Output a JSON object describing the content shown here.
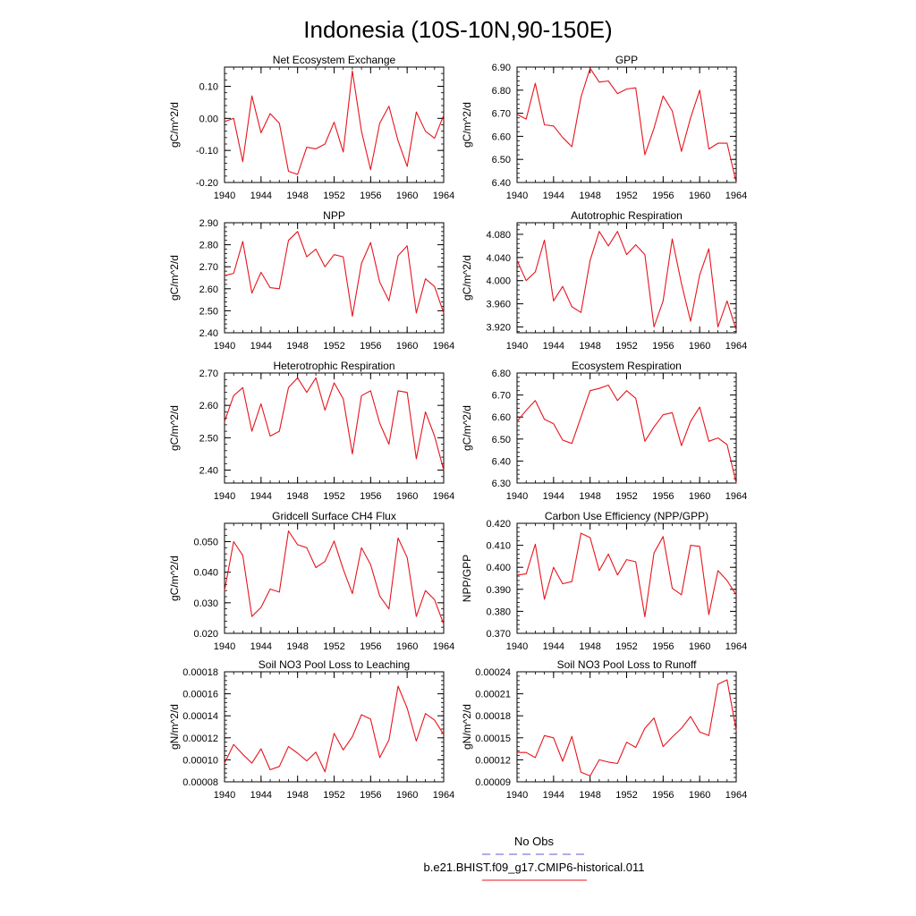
{
  "title": "Indonesia (10S-10N,90-150E)",
  "colors": {
    "model_line": "#e8141c",
    "obs_line": "#5b5bd6",
    "axis": "#000000"
  },
  "legend": {
    "placement": "bottom-center",
    "entries": [
      {
        "label": "No Obs",
        "style": "dashed",
        "color": "#5b5bd6"
      },
      {
        "label": "b.e21.BHIST.f09_g17.CMIP6-historical.011",
        "style": "solid",
        "color": "#e8141c"
      }
    ]
  },
  "chart_data": [
    {
      "type": "line",
      "title": "Net Ecosystem Exchange",
      "ylabel": "gC/m^2/d",
      "xlim": [
        1940,
        1964
      ],
      "ylim": [
        -0.2,
        0.16
      ],
      "xticks": [
        "1940",
        "1944",
        "1948",
        "1952",
        "1956",
        "1960",
        "1964"
      ],
      "yticks": [
        "-0.20",
        "-0.10",
        "0.00",
        "0.10"
      ],
      "x": [
        1940,
        1941,
        1942,
        1943,
        1944,
        1945,
        1946,
        1947,
        1948,
        1949,
        1950,
        1951,
        1952,
        1953,
        1954,
        1955,
        1956,
        1957,
        1958,
        1959,
        1960,
        1961,
        1962,
        1963,
        1964
      ],
      "series": [
        {
          "values": [
            -0.01,
            0.0,
            -0.135,
            0.07,
            -0.045,
            0.015,
            -0.015,
            -0.165,
            -0.175,
            -0.09,
            -0.095,
            -0.08,
            -0.012,
            -0.105,
            0.148,
            -0.04,
            -0.16,
            -0.015,
            0.038,
            -0.07,
            -0.15,
            0.02,
            -0.04,
            -0.062,
            0.01
          ]
        }
      ]
    },
    {
      "type": "line",
      "title": "GPP",
      "ylabel": "gC/m^2/d",
      "xlim": [
        1940,
        1964
      ],
      "ylim": [
        6.4,
        6.9
      ],
      "xticks": [
        "1940",
        "1944",
        "1948",
        "1952",
        "1956",
        "1960",
        "1964"
      ],
      "yticks": [
        "6.40",
        "6.50",
        "6.60",
        "6.70",
        "6.80",
        "6.90"
      ],
      "x": [
        1940,
        1941,
        1942,
        1943,
        1944,
        1945,
        1946,
        1947,
        1948,
        1949,
        1950,
        1951,
        1952,
        1953,
        1954,
        1955,
        1956,
        1957,
        1958,
        1959,
        1960,
        1961,
        1962,
        1963,
        1964
      ],
      "series": [
        {
          "values": [
            6.695,
            6.675,
            6.83,
            6.65,
            6.645,
            6.595,
            6.555,
            6.77,
            6.895,
            6.835,
            6.84,
            6.785,
            6.805,
            6.81,
            6.52,
            6.635,
            6.775,
            6.71,
            6.535,
            6.68,
            6.8,
            6.545,
            6.57,
            6.57,
            6.4
          ]
        }
      ]
    },
    {
      "type": "line",
      "title": "NPP",
      "ylabel": "gC/m^2/d",
      "xlim": [
        1940,
        1964
      ],
      "ylim": [
        2.4,
        2.9
      ],
      "xticks": [
        "1940",
        "1944",
        "1948",
        "1952",
        "1956",
        "1960",
        "1964"
      ],
      "yticks": [
        "2.40",
        "2.50",
        "2.60",
        "2.70",
        "2.80",
        "2.90"
      ],
      "x": [
        1940,
        1941,
        1942,
        1943,
        1944,
        1945,
        1946,
        1947,
        1948,
        1949,
        1950,
        1951,
        1952,
        1953,
        1954,
        1955,
        1956,
        1957,
        1958,
        1959,
        1960,
        1961,
        1962,
        1963,
        1964
      ],
      "series": [
        {
          "values": [
            2.66,
            2.67,
            2.815,
            2.58,
            2.675,
            2.605,
            2.6,
            2.82,
            2.86,
            2.745,
            2.78,
            2.7,
            2.755,
            2.745,
            2.475,
            2.715,
            2.81,
            2.63,
            2.545,
            2.75,
            2.795,
            2.49,
            2.645,
            2.61,
            2.49
          ]
        }
      ]
    },
    {
      "type": "line",
      "title": "Autotrophic Respiration",
      "ylabel": "gC/m^2/d",
      "xlim": [
        1940,
        1964
      ],
      "ylim": [
        3.91,
        4.1
      ],
      "xticks": [
        "1940",
        "1944",
        "1948",
        "1952",
        "1956",
        "1960",
        "1964"
      ],
      "yticks": [
        "3.920",
        "3.960",
        "4.000",
        "4.040",
        "4.080"
      ],
      "x": [
        1940,
        1941,
        1942,
        1943,
        1944,
        1945,
        1946,
        1947,
        1948,
        1949,
        1950,
        1951,
        1952,
        1953,
        1954,
        1955,
        1956,
        1957,
        1958,
        1959,
        1960,
        1961,
        1962,
        1963,
        1964
      ],
      "series": [
        {
          "values": [
            4.035,
            4.0,
            4.015,
            4.07,
            3.965,
            3.99,
            3.955,
            3.945,
            4.035,
            4.085,
            4.06,
            4.085,
            4.045,
            4.062,
            4.045,
            3.92,
            3.965,
            4.072,
            3.995,
            3.93,
            4.01,
            4.055,
            3.92,
            3.965,
            3.915
          ]
        }
      ]
    },
    {
      "type": "line",
      "title": "Heterotrophic Respiration",
      "ylabel": "gC/m^2/d",
      "xlim": [
        1940,
        1964
      ],
      "ylim": [
        2.36,
        2.7
      ],
      "xticks": [
        "1940",
        "1944",
        "1948",
        "1952",
        "1956",
        "1960",
        "1964"
      ],
      "yticks": [
        "2.40",
        "2.50",
        "2.60",
        "2.70"
      ],
      "x": [
        1940,
        1941,
        1942,
        1943,
        1944,
        1945,
        1946,
        1947,
        1948,
        1949,
        1950,
        1951,
        1952,
        1953,
        1954,
        1955,
        1956,
        1957,
        1958,
        1959,
        1960,
        1961,
        1962,
        1963,
        1964
      ],
      "series": [
        {
          "values": [
            2.55,
            2.63,
            2.655,
            2.52,
            2.605,
            2.505,
            2.52,
            2.655,
            2.685,
            2.64,
            2.685,
            2.585,
            2.67,
            2.62,
            2.45,
            2.63,
            2.645,
            2.545,
            2.48,
            2.645,
            2.64,
            2.435,
            2.58,
            2.505,
            2.4
          ]
        }
      ]
    },
    {
      "type": "line",
      "title": "Ecosystem Respiration",
      "ylabel": "gC/m^2/d",
      "xlim": [
        1940,
        1964
      ],
      "ylim": [
        6.3,
        6.8
      ],
      "xticks": [
        "1940",
        "1944",
        "1948",
        "1952",
        "1956",
        "1960",
        "1964"
      ],
      "yticks": [
        "6.30",
        "6.40",
        "6.50",
        "6.60",
        "6.70",
        "6.80"
      ],
      "x": [
        1940,
        1941,
        1942,
        1943,
        1944,
        1945,
        1946,
        1947,
        1948,
        1949,
        1950,
        1951,
        1952,
        1953,
        1954,
        1955,
        1956,
        1957,
        1958,
        1959,
        1960,
        1961,
        1962,
        1963,
        1964
      ],
      "series": [
        {
          "values": [
            6.58,
            6.63,
            6.675,
            6.59,
            6.57,
            6.495,
            6.48,
            6.6,
            6.72,
            6.73,
            6.745,
            6.675,
            6.72,
            6.685,
            6.49,
            6.555,
            6.61,
            6.62,
            6.47,
            6.58,
            6.645,
            6.49,
            6.505,
            6.475,
            6.3
          ]
        }
      ]
    },
    {
      "type": "line",
      "title": "Gridcell Surface CH4 Flux",
      "ylabel": "gC/m^2/d",
      "xlim": [
        1940,
        1964
      ],
      "ylim": [
        0.02,
        0.056
      ],
      "xticks": [
        "1940",
        "1944",
        "1948",
        "1952",
        "1956",
        "1960",
        "1964"
      ],
      "yticks": [
        "0.020",
        "0.030",
        "0.040",
        "0.050"
      ],
      "x": [
        1940,
        1941,
        1942,
        1943,
        1944,
        1945,
        1946,
        1947,
        1948,
        1949,
        1950,
        1951,
        1952,
        1953,
        1954,
        1955,
        1956,
        1957,
        1958,
        1959,
        1960,
        1961,
        1962,
        1963,
        1964
      ],
      "series": [
        {
          "values": [
            0.034,
            0.05,
            0.0455,
            0.0255,
            0.0285,
            0.0345,
            0.0335,
            0.0535,
            0.049,
            0.048,
            0.0415,
            0.0435,
            0.0502,
            0.041,
            0.033,
            0.048,
            0.0425,
            0.0322,
            0.028,
            0.0512,
            0.0448,
            0.0255,
            0.034,
            0.031,
            0.023
          ]
        }
      ]
    },
    {
      "type": "line",
      "title": "Carbon Use Efficiency (NPP/GPP)",
      "ylabel": "NPP/GPP",
      "xlim": [
        1940,
        1964
      ],
      "ylim": [
        0.37,
        0.42
      ],
      "xticks": [
        "1940",
        "1944",
        "1948",
        "1952",
        "1956",
        "1960",
        "1964"
      ],
      "yticks": [
        "0.370",
        "0.380",
        "0.390",
        "0.400",
        "0.410",
        "0.420"
      ],
      "x": [
        1940,
        1941,
        1942,
        1943,
        1944,
        1945,
        1946,
        1947,
        1948,
        1949,
        1950,
        1951,
        1952,
        1953,
        1954,
        1955,
        1956,
        1957,
        1958,
        1959,
        1960,
        1961,
        1962,
        1963,
        1964
      ],
      "series": [
        {
          "values": [
            0.3965,
            0.397,
            0.4105,
            0.3855,
            0.4,
            0.3925,
            0.3935,
            0.4155,
            0.4135,
            0.3985,
            0.406,
            0.3965,
            0.4035,
            0.4025,
            0.3775,
            0.4065,
            0.414,
            0.3905,
            0.3875,
            0.41,
            0.4095,
            0.3785,
            0.3985,
            0.394,
            0.3875
          ]
        }
      ]
    },
    {
      "type": "line",
      "title": "Soil NO3 Pool Loss to Leaching",
      "ylabel": "gN/m^2/d",
      "xlim": [
        1940,
        1964
      ],
      "ylim": [
        8e-05,
        0.00018
      ],
      "xticks": [
        "1940",
        "1944",
        "1948",
        "1952",
        "1956",
        "1960",
        "1964"
      ],
      "yticks": [
        "0.00008",
        "0.00010",
        "0.00012",
        "0.00014",
        "0.00016",
        "0.00018"
      ],
      "x": [
        1940,
        1941,
        1942,
        1943,
        1944,
        1945,
        1946,
        1947,
        1948,
        1949,
        1950,
        1951,
        1952,
        1953,
        1954,
        1955,
        1956,
        1957,
        1958,
        1959,
        1960,
        1961,
        1962,
        1963,
        1964
      ],
      "series": [
        {
          "values": [
            9.7e-05,
            0.000114,
            0.000105,
            9.7e-05,
            0.00011,
            9.1e-05,
            9.4e-05,
            0.000112,
            0.000106,
            9.9e-05,
            0.000107,
            8.9e-05,
            0.000124,
            0.000109,
            0.000121,
            0.000141,
            0.000137,
            0.000102,
            0.000118,
            0.000167,
            0.000147,
            0.000117,
            0.000142,
            0.000136,
            0.000123
          ]
        }
      ]
    },
    {
      "type": "line",
      "title": "Soil NO3 Pool Loss to Runoff",
      "ylabel": "gN/m^2/d",
      "xlim": [
        1940,
        1964
      ],
      "ylim": [
        9e-05,
        0.00024
      ],
      "xticks": [
        "1940",
        "1944",
        "1948",
        "1952",
        "1956",
        "1960",
        "1964"
      ],
      "yticks": [
        "0.00009",
        "0.00012",
        "0.00015",
        "0.00018",
        "0.00021",
        "0.00024"
      ],
      "x": [
        1940,
        1941,
        1942,
        1943,
        1944,
        1945,
        1946,
        1947,
        1948,
        1949,
        1950,
        1951,
        1952,
        1953,
        1954,
        1955,
        1956,
        1957,
        1958,
        1959,
        1960,
        1961,
        1962,
        1963,
        1964
      ],
      "series": [
        {
          "values": [
            0.00013,
            0.00013,
            0.000123,
            0.000153,
            0.00015,
            0.000118,
            0.000152,
            0.000103,
            9.8e-05,
            0.00012,
            0.000117,
            0.000115,
            0.000144,
            0.000137,
            0.000163,
            0.000177,
            0.000138,
            0.000151,
            0.000163,
            0.000179,
            0.000158,
            0.000153,
            0.000223,
            0.000229,
            0.00016
          ]
        }
      ]
    }
  ]
}
